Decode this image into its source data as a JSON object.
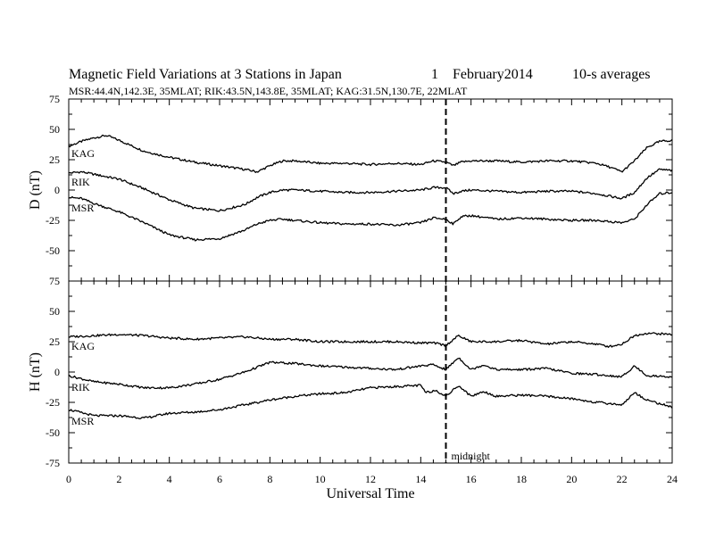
{
  "header": {
    "title": "Magnetic Field Variations at 3 Stations in Japan",
    "date_day": "1",
    "date_month_year": "February2014",
    "averaging": "10-s averages",
    "stations": "MSR:44.4N,142.3E, 35MLAT;  RIK:43.5N,143.8E, 35MLAT;  KAG:31.5N,130.7E, 22MLAT"
  },
  "chart_data": [
    {
      "type": "line",
      "panel": "D",
      "ylabel": "D (nT)",
      "ylim": [
        -75,
        75
      ],
      "yticks": [
        -75,
        -50,
        -25,
        0,
        25,
        50,
        75
      ],
      "xlim": [
        0,
        24
      ],
      "series": [
        {
          "name": "KAG",
          "x": [
            0,
            0.5,
            1,
            1.5,
            2,
            3,
            4,
            5,
            6,
            7,
            7.5,
            8,
            8.5,
            9,
            10,
            11,
            12,
            13,
            14,
            14.5,
            15,
            15.3,
            15.6,
            16,
            17,
            18,
            19,
            20,
            21,
            21.5,
            22,
            22.5,
            23,
            23.5,
            24
          ],
          "y": [
            36,
            40,
            43,
            45,
            41,
            32,
            27,
            23,
            20,
            17,
            15,
            20,
            24,
            24,
            22,
            22,
            21,
            22,
            21,
            24,
            23,
            20,
            23,
            24,
            24,
            23,
            24,
            24,
            22,
            19,
            15,
            24,
            35,
            40,
            41
          ]
        },
        {
          "name": "RIK",
          "x": [
            0,
            0.5,
            1,
            2,
            3,
            4,
            5,
            6,
            7,
            7.5,
            8,
            8.5,
            9,
            10,
            11,
            12,
            13,
            14,
            14.5,
            15,
            15.3,
            15.6,
            16,
            17,
            18,
            19,
            20,
            21,
            21.5,
            22,
            22.5,
            23,
            23.5,
            24
          ],
          "y": [
            14,
            15,
            13,
            9,
            1,
            -8,
            -15,
            -17,
            -12,
            -6,
            -2,
            0,
            0,
            -1,
            -2,
            -2,
            -1,
            0,
            2,
            2,
            -3,
            -1,
            0,
            -1,
            -2,
            -1,
            -1,
            -3,
            -5,
            -7,
            -2,
            10,
            17,
            16
          ]
        },
        {
          "name": "MSR",
          "x": [
            0,
            0.5,
            1,
            2,
            3,
            4,
            5,
            6,
            7,
            7.5,
            8,
            8.5,
            9,
            10,
            11,
            12,
            13,
            14,
            14.5,
            15,
            15.3,
            15.6,
            16,
            17,
            18,
            19,
            20,
            21,
            21.5,
            22,
            22.5,
            23,
            23.5,
            24
          ],
          "y": [
            -6,
            -7,
            -11,
            -18,
            -27,
            -37,
            -41,
            -40,
            -33,
            -28,
            -25,
            -24,
            -25,
            -27,
            -28,
            -28,
            -29,
            -27,
            -23,
            -24,
            -28,
            -22,
            -21,
            -24,
            -23,
            -24,
            -25,
            -25,
            -26,
            -27,
            -24,
            -12,
            -3,
            -2
          ]
        }
      ]
    },
    {
      "type": "line",
      "panel": "H",
      "ylabel": "H (nT)",
      "ylim": [
        -75,
        75
      ],
      "yticks": [
        -75,
        -50,
        -25,
        0,
        25,
        50,
        75
      ],
      "xlim": [
        0,
        24
      ],
      "xticks": [
        0,
        2,
        4,
        6,
        8,
        10,
        12,
        14,
        16,
        18,
        20,
        22,
        24
      ],
      "xlabel": "Universal Time",
      "series": [
        {
          "name": "KAG",
          "x": [
            0,
            1,
            2,
            3,
            4,
            5,
            6,
            7,
            8,
            9,
            10,
            11,
            12,
            13,
            14,
            14.5,
            15,
            15.5,
            16,
            17,
            18,
            19,
            20,
            21,
            21.5,
            22,
            22.5,
            23,
            24
          ],
          "y": [
            29,
            30,
            31,
            30,
            28,
            27,
            28,
            29,
            27,
            27,
            25,
            25,
            25,
            25,
            24,
            24,
            22,
            30,
            25,
            25,
            26,
            23,
            25,
            23,
            21,
            23,
            30,
            32,
            31
          ]
        },
        {
          "name": "RIK",
          "x": [
            0,
            1,
            2,
            3,
            4,
            5,
            6,
            7,
            8,
            9,
            10,
            11,
            12,
            13,
            14,
            14.5,
            15,
            15.5,
            16,
            16.5,
            17,
            18,
            19,
            20,
            21,
            22,
            22.5,
            23,
            24
          ],
          "y": [
            -3,
            -8,
            -10,
            -13,
            -13,
            -10,
            -6,
            0,
            8,
            7,
            5,
            4,
            3,
            2,
            5,
            6,
            2,
            12,
            2,
            6,
            2,
            2,
            3,
            -1,
            -2,
            -4,
            5,
            -3,
            -4
          ]
        },
        {
          "name": "MSR",
          "x": [
            0,
            1,
            2,
            3,
            4,
            5,
            6,
            7,
            8,
            9,
            10,
            11,
            12,
            13,
            14,
            14.2,
            14.6,
            15,
            15.5,
            16,
            16.5,
            17,
            18,
            19,
            20,
            21,
            22,
            22.5,
            23,
            24
          ],
          "y": [
            -31,
            -36,
            -36,
            -38,
            -34,
            -33,
            -31,
            -27,
            -23,
            -20,
            -18,
            -17,
            -13,
            -12,
            -11,
            -17,
            -15,
            -20,
            -11,
            -20,
            -16,
            -20,
            -19,
            -20,
            -22,
            -25,
            -27,
            -17,
            -23,
            -29
          ]
        }
      ]
    }
  ],
  "annotations": {
    "midnight_label": "midnight",
    "midnight_x": 15
  },
  "colors": {
    "line": "#000000",
    "background": "#ffffff"
  }
}
